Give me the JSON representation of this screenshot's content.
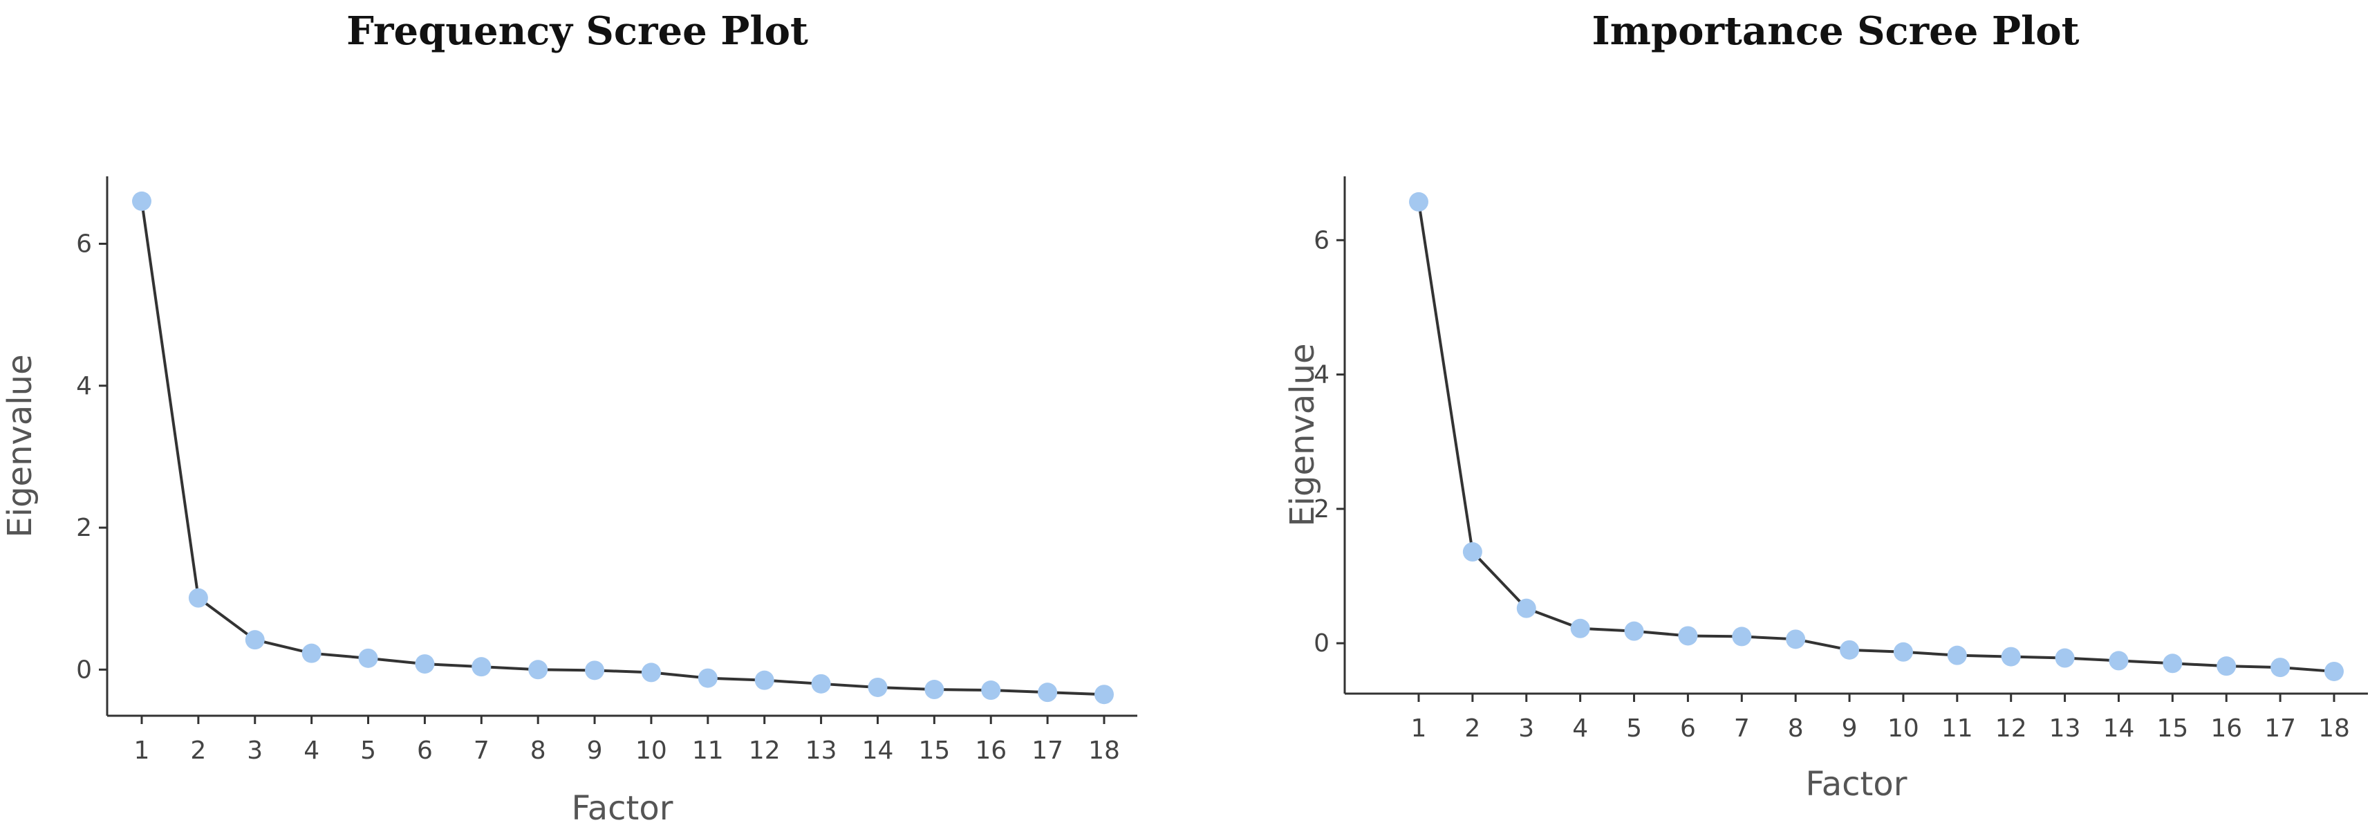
{
  "colors": {
    "point": "#a4c8f0",
    "line": "#333333"
  },
  "chart_data": [
    {
      "type": "line",
      "title": "Frequency Scree Plot",
      "xlabel": "Factor",
      "ylabel": "Eigenvalue",
      "x": [
        1,
        2,
        3,
        4,
        5,
        6,
        7,
        8,
        9,
        10,
        11,
        12,
        13,
        14,
        15,
        16,
        17,
        18
      ],
      "x_tick_labels": [
        "1",
        "2",
        "3",
        "4",
        "5",
        "6",
        "7",
        "8",
        "9",
        "10",
        "11",
        "12",
        "13",
        "14",
        "15",
        "16",
        "17",
        "18"
      ],
      "y_ticks": [
        0,
        2,
        4,
        6
      ],
      "y_tick_labels": [
        "0",
        "2",
        "4",
        "6"
      ],
      "ylim": [
        -0.65,
        6.95
      ],
      "series": [
        {
          "values": [
            6.6,
            1.01,
            0.42,
            0.23,
            0.16,
            0.08,
            0.04,
            0.0,
            -0.01,
            -0.04,
            -0.12,
            -0.15,
            -0.2,
            -0.25,
            -0.28,
            -0.29,
            -0.32,
            -0.35
          ]
        }
      ],
      "grid": false,
      "markers": "circle"
    },
    {
      "type": "line",
      "title": "Importance Scree Plot",
      "xlabel": "Factor",
      "ylabel": "Eigenvalue",
      "x": [
        1,
        2,
        3,
        4,
        5,
        6,
        7,
        8,
        9,
        10,
        11,
        12,
        13,
        14,
        15,
        16,
        17,
        18
      ],
      "x_tick_labels": [
        "1",
        "2",
        "3",
        "4",
        "5",
        "6",
        "7",
        "8",
        "9",
        "10",
        "11",
        "12",
        "13",
        "14",
        "15",
        "16",
        "17",
        "18"
      ],
      "y_ticks": [
        0,
        2,
        4,
        6
      ],
      "y_tick_labels": [
        "0",
        "2",
        "4",
        "6"
      ],
      "ylim": [
        -0.75,
        6.95
      ],
      "series": [
        {
          "values": [
            6.57,
            1.36,
            0.52,
            0.22,
            0.18,
            0.11,
            0.1,
            0.06,
            -0.1,
            -0.13,
            -0.18,
            -0.2,
            -0.22,
            -0.26,
            -0.3,
            -0.34,
            -0.36,
            -0.42
          ]
        }
      ],
      "grid": false,
      "markers": "circle"
    }
  ]
}
